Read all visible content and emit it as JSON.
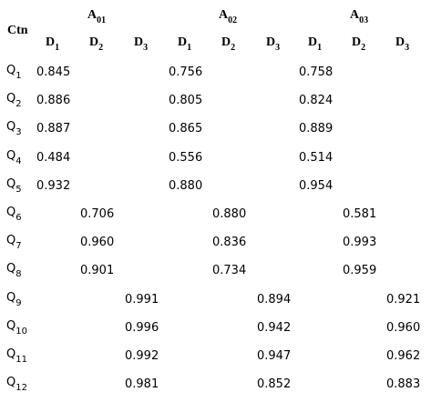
{
  "table": {
    "corner": "Ctn",
    "groups": [
      {
        "base": "A",
        "sub": "01",
        "columns": [
          {
            "base": "D",
            "sub": "1"
          },
          {
            "base": "D",
            "sub": "2"
          },
          {
            "base": "D",
            "sub": "3"
          }
        ]
      },
      {
        "base": "A",
        "sub": "02",
        "columns": [
          {
            "base": "D",
            "sub": "1"
          },
          {
            "base": "D",
            "sub": "2"
          },
          {
            "base": "D",
            "sub": "3"
          }
        ]
      },
      {
        "base": "A",
        "sub": "03",
        "columns": [
          {
            "base": "D",
            "sub": "1"
          },
          {
            "base": "D",
            "sub": "2"
          },
          {
            "base": "D",
            "sub": "3"
          }
        ]
      }
    ],
    "rows": [
      {
        "base": "Q",
        "sub": "1",
        "cells": [
          "0.845",
          null,
          null,
          "0.756",
          null,
          null,
          "0.758",
          null,
          null
        ]
      },
      {
        "base": "Q",
        "sub": "2",
        "cells": [
          "0.886",
          null,
          null,
          "0.805",
          null,
          null,
          "0.824",
          null,
          null
        ]
      },
      {
        "base": "Q",
        "sub": "3",
        "cells": [
          "0.887",
          null,
          null,
          "0.865",
          null,
          null,
          "0.889",
          null,
          null
        ]
      },
      {
        "base": "Q",
        "sub": "4",
        "cells": [
          "0.484",
          null,
          null,
          "0.556",
          null,
          null,
          "0.514",
          null,
          null
        ]
      },
      {
        "base": "Q",
        "sub": "5",
        "cells": [
          "0.932",
          null,
          null,
          "0.880",
          null,
          null,
          "0.954",
          null,
          null
        ]
      },
      {
        "base": "Q",
        "sub": "6",
        "cells": [
          null,
          "0.706",
          null,
          null,
          "0.880",
          null,
          null,
          "0.581",
          null
        ]
      },
      {
        "base": "Q",
        "sub": "7",
        "cells": [
          null,
          "0.960",
          null,
          null,
          "0.836",
          null,
          null,
          "0.993",
          null
        ]
      },
      {
        "base": "Q",
        "sub": "8",
        "cells": [
          null,
          "0.901",
          null,
          null,
          "0.734",
          null,
          null,
          "0.959",
          null
        ]
      },
      {
        "base": "Q",
        "sub": "9",
        "cells": [
          null,
          null,
          "0.991",
          null,
          null,
          "0.894",
          null,
          null,
          "0.921"
        ]
      },
      {
        "base": "Q",
        "sub": "10",
        "cells": [
          null,
          null,
          "0.996",
          null,
          null,
          "0.942",
          null,
          null,
          "0.960"
        ]
      },
      {
        "base": "Q",
        "sub": "11",
        "cells": [
          null,
          null,
          "0.992",
          null,
          null,
          "0.947",
          null,
          null,
          "0.962"
        ]
      },
      {
        "base": "Q",
        "sub": "12",
        "cells": [
          null,
          null,
          "0.981",
          null,
          null,
          "0.852",
          null,
          null,
          "0.883"
        ]
      }
    ]
  }
}
